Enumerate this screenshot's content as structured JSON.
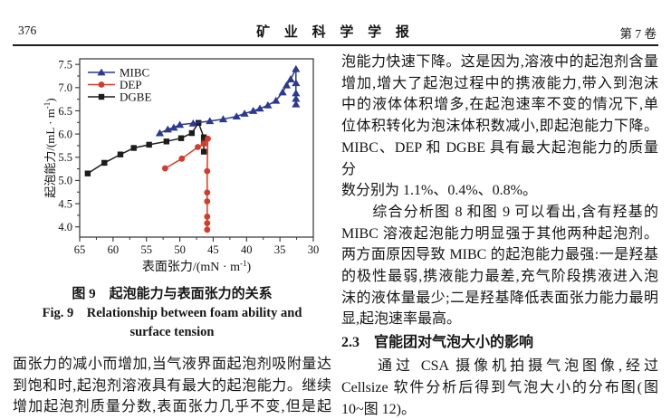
{
  "header": {
    "page_number": "376",
    "journal_title": "矿 业 科 学 学 报",
    "volume": "第 7 卷"
  },
  "figure": {
    "caption_cn": "图 9　起泡能力与表面张力的关系",
    "caption_en_line1": "Fig. 9　Relationship between foam ability and",
    "caption_en_line2": "surface tension"
  },
  "left_column": {
    "paragraph": "面张力的减小而增加,当气液界面起泡剂吸附量达\n到饱和时,起泡剂溶液具有最大的起泡能力。继续\n增加起泡剂质量分数,表面张力几乎不变,但是起"
  },
  "right_column": {
    "paragraph1": "泡能力快速下降。这是因为,溶液中的起泡剂含量\n增加,增大了起泡过程中的携液能力,带入到泡沫\n中的液体体积增多,在起泡速率不变的情况下,单\n位体积转化为泡沫体积数减小,即起泡能力下降。\nMIBC、DEP 和 DGBE 具有最大起泡能力的质量分\n数分别为 1.1%、0.4%、0.8%。",
    "paragraph2": "　　综合分析图 8 和图 9 可以看出,含有羟基的\nMIBC 溶液起泡能力明显强于其他两种起泡剂。\n两方面原因导致 MIBC 的起泡能力最强:一是羟基\n的极性最弱,携液能力最差,充气阶段携液进入泡\n沫的液体量最少;二是羟基降低表面张力能力最明\n显,起泡速率最高。",
    "section_heading": "2.3　官能团对气泡大小的影响",
    "paragraph3": "　　通过 CSA 摄像机拍摄气泡图像,经过\nCellsize 软件分析后得到气泡大小的分布图(图\n10~图 12)。"
  },
  "chart_data": {
    "type": "line",
    "title": "",
    "xlabel": "表面张力/(mN · m⁻¹)",
    "ylabel": "起泡能力/(mL · m⁻¹)",
    "x_direction": "reversed",
    "xlim": [
      65,
      30
    ],
    "ylim": [
      3.78,
      7.62
    ],
    "xticks": [
      65,
      60,
      55,
      50,
      45,
      40,
      35,
      30
    ],
    "xtick_labels": [
      "65",
      "60",
      "55",
      "50",
      "45",
      "40",
      "35",
      "30"
    ],
    "yticks": [
      4.0,
      4.5,
      5.0,
      5.5,
      6.0,
      6.5,
      7.0,
      7.5
    ],
    "ytick_labels": [
      "4.0",
      "4.5",
      "5.0",
      "5.5",
      "6.0",
      "6.5",
      "7.0",
      "7.5"
    ],
    "grid": false,
    "legend_position": "top-left",
    "series": [
      {
        "name": "MIBC",
        "color": "#2b3990",
        "marker": "triangle",
        "points": [
          [
            53.0,
            6.02
          ],
          [
            51.8,
            6.1
          ],
          [
            50.9,
            6.14
          ],
          [
            50.0,
            6.2
          ],
          [
            48.0,
            6.23
          ],
          [
            45.5,
            6.28
          ],
          [
            43.5,
            6.32
          ],
          [
            41.5,
            6.38
          ],
          [
            40.3,
            6.44
          ],
          [
            39.0,
            6.5
          ],
          [
            38.0,
            6.55
          ],
          [
            36.8,
            6.62
          ],
          [
            35.6,
            6.72
          ],
          [
            34.6,
            6.9
          ],
          [
            34.0,
            7.05
          ],
          [
            33.4,
            7.18
          ],
          [
            32.6,
            7.4
          ],
          [
            32.6,
            7.1
          ],
          [
            32.6,
            6.88
          ],
          [
            32.6,
            6.76
          ],
          [
            32.6,
            6.64
          ]
        ]
      },
      {
        "name": "DEP",
        "color": "#d23c2a",
        "marker": "circle",
        "points": [
          [
            52.2,
            5.26
          ],
          [
            49.7,
            5.47
          ],
          [
            47.3,
            5.72
          ],
          [
            46.4,
            5.79
          ],
          [
            45.8,
            5.9
          ],
          [
            45.9,
            5.2
          ],
          [
            45.9,
            4.74
          ],
          [
            45.9,
            4.55
          ],
          [
            45.9,
            4.22
          ],
          [
            45.9,
            4.08
          ],
          [
            45.9,
            3.94
          ]
        ]
      },
      {
        "name": "DGBE",
        "color": "#1c1c1c",
        "marker": "square",
        "points": [
          [
            63.8,
            5.15
          ],
          [
            61.3,
            5.38
          ],
          [
            58.9,
            5.56
          ],
          [
            56.9,
            5.7
          ],
          [
            54.6,
            5.77
          ],
          [
            52.0,
            5.84
          ],
          [
            49.8,
            5.91
          ],
          [
            48.2,
            6.02
          ],
          [
            47.2,
            6.24
          ],
          [
            46.4,
            5.93
          ],
          [
            46.4,
            5.8
          ],
          [
            46.4,
            5.62
          ]
        ]
      }
    ]
  }
}
